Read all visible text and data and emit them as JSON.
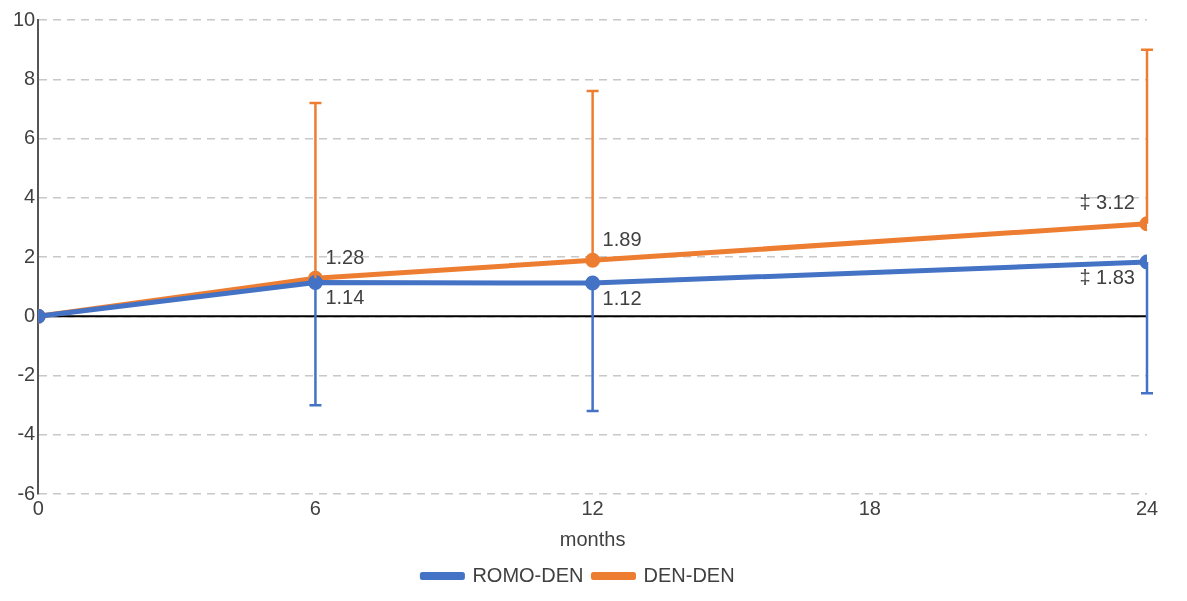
{
  "chart_data": {
    "type": "line",
    "xlabel": "months",
    "x": [
      0,
      6,
      12,
      24
    ],
    "series": [
      {
        "name": "ROMO-DEN",
        "color": "#4472c4",
        "values": [
          0,
          1.14,
          1.12,
          1.83
        ],
        "errors": [
          null,
          [
            -3.0,
            1.14
          ],
          [
            -3.2,
            1.12
          ],
          [
            -2.6,
            1.83
          ]
        ],
        "value_labels": [
          null,
          "1.14",
          "1.12",
          "‡ 1.83"
        ]
      },
      {
        "name": "DEN-DEN",
        "color": "#ed7d31",
        "values": [
          0,
          1.28,
          1.89,
          3.12
        ],
        "errors": [
          null,
          [
            1.28,
            7.2
          ],
          [
            1.89,
            7.6
          ],
          [
            3.12,
            9.0
          ]
        ],
        "value_labels": [
          null,
          "1.28",
          "1.89",
          "‡ 3.12"
        ]
      }
    ],
    "xlim": [
      0,
      24
    ],
    "xticks": [
      0,
      6,
      12,
      18,
      24
    ],
    "ylim": [
      -6,
      10
    ],
    "yticks": [
      -6,
      -4,
      -2,
      0,
      2,
      4,
      6,
      8,
      10
    ],
    "ref_lines": [
      {
        "axis": "y",
        "value": 0,
        "color": "#000000",
        "line_style": "solid"
      }
    ],
    "grid": "y",
    "legend": "bottom",
    "marker": "circle",
    "line_style": "solid"
  }
}
